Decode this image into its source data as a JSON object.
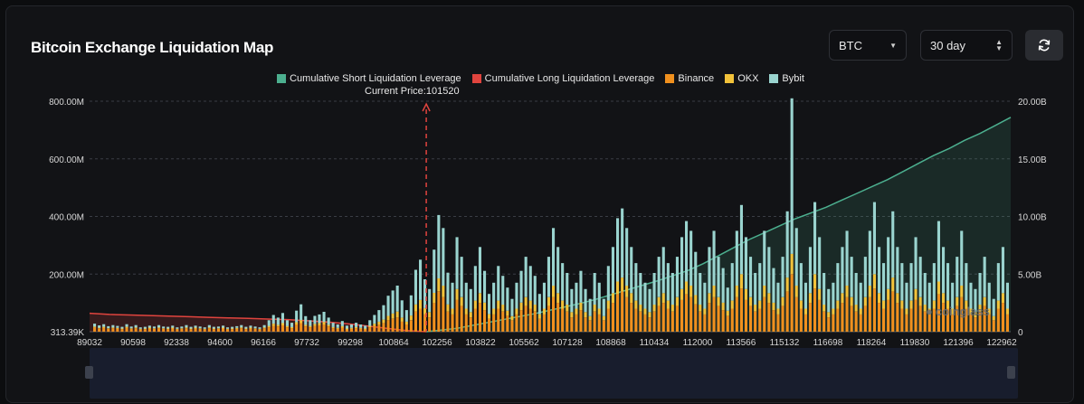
{
  "title": "Bitcoin Exchange Liquidation Map",
  "controls": {
    "coin_select": "BTC",
    "period_select": "30 day"
  },
  "legend": [
    {
      "label": "Cumulative Short Liquidation Leverage",
      "color": "#4caf8f"
    },
    {
      "label": "Cumulative Long Liquidation Leverage",
      "color": "#e0443e"
    },
    {
      "label": "Binance",
      "color": "#f0901e"
    },
    {
      "label": "OKX",
      "color": "#f2c23a"
    },
    {
      "label": "Bybit",
      "color": "#9ad4cf"
    }
  ],
  "current_price_label": "Current Price:101520",
  "watermark": "coinglass",
  "chart_data": {
    "type": "bar",
    "x_tick_labels": [
      "89032",
      "90598",
      "92338",
      "94600",
      "96166",
      "97732",
      "99298",
      "100864",
      "102256",
      "103822",
      "105562",
      "107128",
      "108868",
      "110434",
      "112000",
      "113566",
      "115132",
      "116698",
      "118264",
      "119830",
      "121396",
      "122962"
    ],
    "y_left_tick_labels": [
      "313.39K",
      "200.00M",
      "400.00M",
      "600.00M",
      "800.00M"
    ],
    "y_right_tick_labels": [
      "0",
      "5.00B",
      "10.00B",
      "15.00B",
      "20.00B"
    ],
    "y_left_range_M": [
      0,
      800
    ],
    "y_right_range_B": [
      0,
      20
    ],
    "x_range": [
      89032,
      123200
    ],
    "current_price": 101520,
    "grid": true,
    "bar_colors": {
      "Binance": "#f0901e",
      "OKX": "#f2c23a",
      "Bybit": "#9ad4cf"
    },
    "long_leverage_B": [
      1.6,
      1.5,
      1.45,
      1.4,
      1.35,
      1.3,
      1.25,
      1.2,
      1.15,
      1.1,
      1.05,
      0.95,
      0.85,
      0.7,
      0.5,
      0.3,
      0.1,
      0
    ],
    "short_leverage_B": [
      0,
      0.15,
      0.3,
      0.55,
      0.8,
      1.05,
      1.3,
      1.55,
      1.85,
      2.15,
      2.45,
      2.8,
      3.2,
      3.6,
      4.0,
      4.4,
      4.85,
      5.3,
      5.9,
      6.6,
      7.3,
      8.0,
      8.6,
      9.2,
      9.8,
      10.3,
      10.8,
      11.4,
      12.0,
      12.6,
      13.2,
      13.9,
      14.6,
      15.3,
      15.9,
      16.6,
      17.2,
      17.9,
      18.6
    ],
    "binance_M": [
      15,
      12,
      14,
      10,
      12,
      11,
      9,
      14,
      10,
      12,
      8,
      9,
      11,
      10,
      12,
      10,
      9,
      11,
      8,
      10,
      12,
      9,
      11,
      10,
      8,
      12,
      9,
      10,
      11,
      8,
      9,
      10,
      12,
      9,
      11,
      10,
      8,
      12,
      15,
      20,
      18,
      22,
      15,
      12,
      25,
      30,
      18,
      15,
      20,
      22,
      25,
      18,
      12,
      10,
      14,
      8,
      10,
      12,
      10,
      8,
      15,
      20,
      25,
      30,
      40,
      45,
      50,
      35,
      25,
      40,
      70,
      80,
      60,
      50,
      100,
      140,
      120,
      70,
      60,
      110,
      90,
      60,
      50,
      80,
      100,
      75,
      45,
      60,
      80,
      70,
      55,
      40,
      60,
      75,
      90,
      80,
      70,
      45,
      60,
      90,
      120,
      100,
      80,
      70,
      50,
      60,
      75,
      50,
      40,
      70,
      60,
      40,
      80,
      100,
      130,
      140,
      120,
      100,
      80,
      70,
      60,
      50,
      70,
      90,
      100,
      80,
      70,
      90,
      110,
      130,
      120,
      95,
      70,
      60,
      100,
      120,
      90,
      75,
      55,
      80,
      120,
      150,
      110,
      90,
      70,
      80,
      120,
      100,
      75,
      60,
      90,
      140,
      200,
      120,
      80,
      60,
      100,
      150,
      110,
      70,
      50,
      60,
      80,
      100,
      120,
      90,
      70,
      60,
      90,
      120,
      150,
      100,
      80,
      110,
      140,
      100,
      80,
      60,
      80,
      110,
      90,
      70,
      60,
      80,
      130,
      100,
      80,
      60,
      90,
      120,
      80,
      60,
      50,
      70,
      90,
      60,
      40,
      80,
      100,
      60
    ],
    "okx_M": [
      3,
      2,
      3,
      2,
      3,
      2,
      2,
      3,
      2,
      3,
      2,
      2,
      3,
      2,
      3,
      2,
      2,
      3,
      2,
      2,
      3,
      2,
      3,
      2,
      2,
      3,
      2,
      2,
      3,
      2,
      2,
      3,
      3,
      2,
      3,
      2,
      2,
      3,
      5,
      8,
      6,
      8,
      5,
      4,
      8,
      10,
      6,
      5,
      7,
      8,
      9,
      6,
      4,
      3,
      5,
      3,
      3,
      4,
      3,
      3,
      5,
      8,
      10,
      12,
      15,
      18,
      20,
      14,
      10,
      16,
      25,
      30,
      22,
      18,
      35,
      45,
      40,
      25,
      20,
      38,
      30,
      20,
      18,
      28,
      34,
      26,
      16,
      20,
      28,
      24,
      18,
      14,
      20,
      26,
      30,
      28,
      24,
      16,
      20,
      30,
      40,
      34,
      28,
      24,
      18,
      20,
      26,
      18,
      14,
      24,
      20,
      14,
      28,
      34,
      44,
      48,
      40,
      34,
      28,
      24,
      20,
      18,
      24,
      30,
      34,
      28,
      24,
      30,
      38,
      44,
      40,
      32,
      24,
      20,
      34,
      40,
      30,
      26,
      18,
      28,
      40,
      50,
      38,
      30,
      24,
      28,
      40,
      34,
      26,
      20,
      30,
      48,
      70,
      40,
      28,
      20,
      34,
      50,
      38,
      24,
      18,
      20,
      28,
      34,
      40,
      30,
      24,
      20,
      30,
      40,
      50,
      34,
      28,
      38,
      48,
      34,
      28,
      20,
      28,
      38,
      30,
      24,
      20,
      28,
      44,
      34,
      28,
      20,
      30,
      40,
      28,
      20,
      18,
      24,
      30,
      20,
      14,
      28,
      34,
      20
    ],
    "bybit_M": [
      10,
      8,
      9,
      7,
      8,
      7,
      6,
      9,
      6,
      8,
      5,
      6,
      7,
      6,
      8,
      6,
      6,
      7,
      5,
      6,
      8,
      6,
      7,
      6,
      5,
      8,
      6,
      6,
      7,
      5,
      6,
      6,
      8,
      6,
      7,
      6,
      5,
      8,
      20,
      30,
      25,
      35,
      20,
      15,
      40,
      55,
      30,
      20,
      28,
      30,
      35,
      25,
      15,
      12,
      18,
      10,
      12,
      15,
      12,
      10,
      20,
      30,
      40,
      50,
      70,
      80,
      90,
      60,
      40,
      70,
      120,
      140,
      100,
      80,
      150,
      220,
      200,
      110,
      90,
      180,
      140,
      90,
      80,
      120,
      160,
      110,
      70,
      90,
      120,
      100,
      80,
      60,
      90,
      110,
      140,
      120,
      100,
      70,
      90,
      140,
      200,
      160,
      130,
      110,
      80,
      90,
      110,
      80,
      60,
      110,
      90,
      60,
      120,
      160,
      220,
      240,
      200,
      160,
      130,
      110,
      90,
      80,
      110,
      140,
      160,
      130,
      110,
      140,
      180,
      210,
      190,
      150,
      110,
      90,
      160,
      190,
      140,
      120,
      80,
      130,
      190,
      240,
      180,
      140,
      110,
      130,
      190,
      160,
      120,
      90,
      140,
      230,
      540,
      200,
      130,
      90,
      160,
      250,
      180,
      110,
      80,
      90,
      130,
      160,
      190,
      140,
      110,
      90,
      140,
      190,
      250,
      160,
      130,
      180,
      230,
      160,
      130,
      90,
      130,
      180,
      140,
      110,
      90,
      130,
      210,
      160,
      130,
      90,
      140,
      190,
      130,
      90,
      80,
      110,
      140,
      90,
      60,
      130,
      160,
      90
    ]
  }
}
